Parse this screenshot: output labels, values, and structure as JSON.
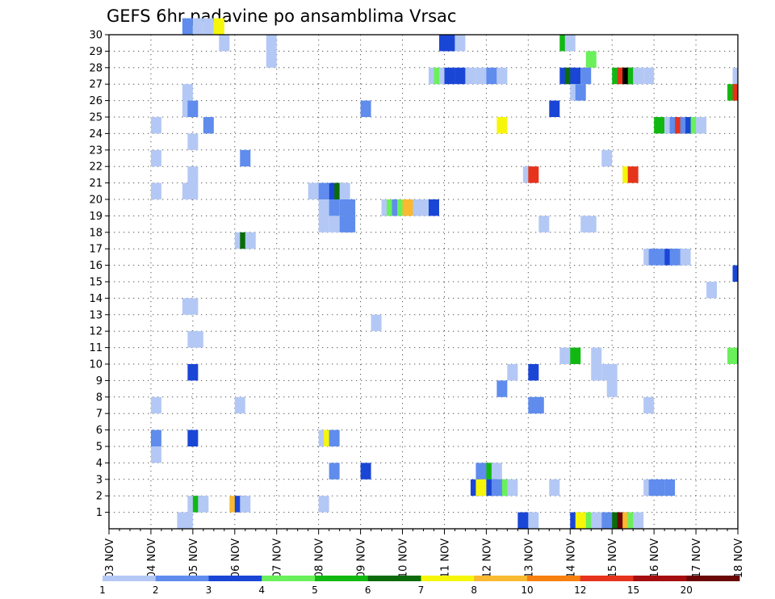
{
  "chart_data": {
    "type": "heatmap",
    "title": "GEFS 6hr padavine po ansamblima Vrsac",
    "xlabel": "",
    "ylabel": "",
    "x_ticks": [
      "03 NOV",
      "04 NOV",
      "05 NOV",
      "06 NOV",
      "07 NOV",
      "08 NOV",
      "09 NOV",
      "10 NOV",
      "11 NOV",
      "12 NOV",
      "13 NOV",
      "14 NOV",
      "15 NOV",
      "16 NOV",
      "17 NOV",
      "18 NOV"
    ],
    "x_range": [
      0,
      60
    ],
    "x_unit": "6-hour steps from 03 NOV 00Z",
    "y_ticks": [
      1,
      2,
      3,
      4,
      5,
      6,
      7,
      8,
      9,
      10,
      11,
      12,
      13,
      14,
      15,
      16,
      17,
      18,
      19,
      20,
      21,
      22,
      23,
      24,
      25,
      26,
      27,
      28,
      29,
      30
    ],
    "y_range": [
      0,
      30
    ],
    "grid": "dotted",
    "colorbar": {
      "labels": [
        "1",
        "2",
        "3",
        "4",
        "5",
        "6",
        "7",
        "8",
        "10",
        "12",
        "15",
        "20"
      ],
      "colors": [
        "#b4c8f5",
        "#5f8ced",
        "#1a46d6",
        "#6af05a",
        "#12b812",
        "#0b6b0b",
        "#f6f60a",
        "#f9b930",
        "#f7800e",
        "#e5331c",
        "#a50e0e",
        "#6b0707"
      ],
      "position": "bottom"
    },
    "cells": [
      {
        "ens": 30,
        "t": [
          [
            7,
            2
          ],
          [
            8,
            1
          ],
          [
            9,
            1
          ],
          [
            10,
            7
          ]
        ]
      },
      {
        "ens": 29,
        "t": [
          [
            10.5,
            1
          ],
          [
            15,
            1
          ],
          [
            31.5,
            3
          ],
          [
            32,
            3
          ],
          [
            33,
            1
          ],
          [
            43,
            5
          ],
          [
            43.5,
            1
          ]
        ]
      },
      {
        "ens": 28,
        "t": [
          [
            15,
            1
          ],
          [
            45.5,
            4
          ]
        ]
      },
      {
        "ens": 27,
        "t": [
          [
            30.5,
            1
          ],
          [
            31,
            4
          ],
          [
            31.5,
            1
          ],
          [
            32,
            3
          ],
          [
            33,
            3
          ],
          [
            34,
            1
          ],
          [
            35,
            1
          ],
          [
            36,
            2
          ],
          [
            37,
            1
          ],
          [
            43,
            3
          ],
          [
            43.5,
            6
          ],
          [
            44,
            3
          ],
          [
            45,
            2
          ],
          [
            48,
            5
          ],
          [
            48.5,
            10
          ],
          [
            49,
            15
          ],
          [
            49.5,
            5
          ],
          [
            50,
            1
          ],
          [
            51,
            1
          ],
          [
            59.5,
            1
          ]
        ]
      },
      {
        "ens": 26,
        "t": [
          [
            7,
            1
          ],
          [
            44,
            1
          ],
          [
            44.5,
            2
          ],
          [
            59,
            5
          ],
          [
            59.5,
            10
          ]
        ]
      },
      {
        "ens": 25,
        "t": [
          [
            7,
            1
          ],
          [
            7.5,
            2
          ],
          [
            24,
            2
          ],
          [
            42,
            3
          ]
        ]
      },
      {
        "ens": 24,
        "t": [
          [
            4,
            1
          ],
          [
            9,
            2
          ],
          [
            37,
            7
          ],
          [
            52,
            5
          ],
          [
            53,
            1
          ],
          [
            53.5,
            2
          ],
          [
            54,
            10
          ],
          [
            54.5,
            2
          ],
          [
            55,
            3
          ],
          [
            55.5,
            4
          ],
          [
            56,
            1
          ]
        ]
      },
      {
        "ens": 23,
        "t": [
          [
            7.5,
            1
          ]
        ]
      },
      {
        "ens": 22,
        "t": [
          [
            4,
            1
          ],
          [
            12.5,
            2
          ],
          [
            47,
            1
          ]
        ]
      },
      {
        "ens": 21,
        "t": [
          [
            7.5,
            1
          ],
          [
            39.5,
            1
          ],
          [
            40,
            10
          ],
          [
            49,
            7
          ],
          [
            49.5,
            10
          ]
        ]
      },
      {
        "ens": 20,
        "t": [
          [
            4,
            1
          ],
          [
            7,
            1
          ],
          [
            7.5,
            1
          ],
          [
            19,
            1
          ],
          [
            19.5,
            1
          ],
          [
            20,
            2
          ],
          [
            21,
            3
          ],
          [
            21.5,
            6
          ],
          [
            22,
            1
          ]
        ]
      },
      {
        "ens": 19,
        "t": [
          [
            20,
            1
          ],
          [
            20.5,
            1
          ],
          [
            21,
            2
          ],
          [
            22,
            2
          ],
          [
            22.5,
            2
          ],
          [
            26,
            1
          ],
          [
            26.5,
            4
          ],
          [
            27,
            2
          ],
          [
            27.5,
            4
          ],
          [
            28,
            8
          ],
          [
            29,
            1
          ],
          [
            29.5,
            1
          ],
          [
            30,
            1
          ],
          [
            30.5,
            3
          ]
        ]
      },
      {
        "ens": 18,
        "t": [
          [
            20,
            1
          ],
          [
            21,
            1
          ],
          [
            22,
            2
          ],
          [
            22.5,
            2
          ],
          [
            41,
            1
          ],
          [
            45,
            1
          ],
          [
            45.5,
            1
          ]
        ]
      },
      {
        "ens": 17,
        "t": [
          [
            12,
            1
          ],
          [
            12.5,
            6
          ],
          [
            13,
            1
          ]
        ]
      },
      {
        "ens": 16,
        "t": [
          [
            51,
            1
          ],
          [
            51.5,
            2
          ],
          [
            52,
            2
          ],
          [
            53,
            3
          ],
          [
            53.5,
            2
          ],
          [
            54,
            2
          ],
          [
            54.5,
            1
          ]
        ]
      },
      {
        "ens": 15,
        "t": [
          [
            59.5,
            3
          ]
        ]
      },
      {
        "ens": 14,
        "t": [
          [
            57,
            1
          ]
        ]
      },
      {
        "ens": 13,
        "t": [
          [
            7,
            1
          ],
          [
            7.5,
            1
          ]
        ]
      },
      {
        "ens": 12,
        "t": [
          [
            25,
            1
          ]
        ]
      },
      {
        "ens": 11,
        "t": [
          [
            7.5,
            1
          ],
          [
            8,
            1
          ]
        ]
      },
      {
        "ens": 10,
        "t": [
          [
            43,
            1
          ],
          [
            43.5,
            1
          ],
          [
            44,
            5
          ],
          [
            46,
            1
          ],
          [
            59,
            4
          ]
        ]
      },
      {
        "ens": 9,
        "t": [
          [
            7.5,
            3
          ],
          [
            38,
            1
          ],
          [
            40,
            3
          ],
          [
            46,
            1
          ],
          [
            47,
            1
          ],
          [
            47.5,
            1
          ]
        ]
      },
      {
        "ens": 8,
        "t": [
          [
            37,
            2
          ],
          [
            47.5,
            1
          ]
        ]
      },
      {
        "ens": 7,
        "t": [
          [
            4,
            1
          ],
          [
            12,
            1
          ],
          [
            40,
            2
          ],
          [
            40.5,
            2
          ],
          [
            51,
            1
          ]
        ]
      },
      {
        "ens": 6,
        "t": []
      },
      {
        "ens": 5,
        "t": [
          [
            4,
            2
          ],
          [
            7.5,
            3
          ],
          [
            20,
            1
          ],
          [
            20.5,
            7
          ],
          [
            21,
            2
          ]
        ]
      },
      {
        "ens": 4,
        "t": [
          [
            4,
            1
          ]
        ]
      },
      {
        "ens": 3,
        "t": [
          [
            21,
            2
          ],
          [
            24,
            3
          ],
          [
            35,
            2
          ],
          [
            35.5,
            2
          ],
          [
            36,
            5
          ],
          [
            36.5,
            1
          ]
        ]
      },
      {
        "ens": 2,
        "t": [
          [
            34.5,
            3
          ],
          [
            35,
            7
          ],
          [
            36,
            3
          ],
          [
            36.5,
            2
          ],
          [
            37,
            2
          ],
          [
            37.5,
            4
          ],
          [
            38,
            1
          ],
          [
            42,
            1
          ],
          [
            51,
            1
          ],
          [
            51.5,
            2
          ],
          [
            52,
            2
          ],
          [
            53,
            2
          ]
        ]
      },
      {
        "ens": 1,
        "t": [
          [
            7.5,
            1
          ],
          [
            8,
            5
          ],
          [
            8.5,
            1
          ],
          [
            11.5,
            8
          ],
          [
            12,
            3
          ],
          [
            12.5,
            1
          ],
          [
            20,
            1
          ]
        ]
      },
      {
        "ens": 0,
        "t": [
          [
            6.5,
            1
          ],
          [
            7,
            1
          ],
          [
            39,
            3
          ],
          [
            39.5,
            3
          ],
          [
            40,
            1
          ],
          [
            44,
            3
          ],
          [
            44.5,
            7
          ],
          [
            45,
            7
          ],
          [
            45.5,
            4
          ],
          [
            46,
            1
          ],
          [
            47,
            2
          ],
          [
            47.5,
            2
          ],
          [
            48,
            6
          ],
          [
            48.5,
            12
          ],
          [
            49,
            8
          ],
          [
            49.5,
            4
          ],
          [
            50,
            1
          ]
        ]
      }
    ]
  }
}
